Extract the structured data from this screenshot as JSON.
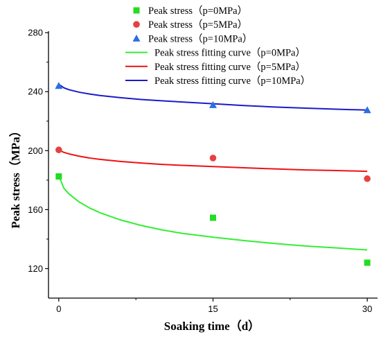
{
  "chart_data": {
    "type": "scatter",
    "xlabel": "Soaking time（d）",
    "ylabel": "Peak stress（MPa）",
    "xlim": [
      -1,
      31
    ],
    "ylim": [
      100,
      281
    ],
    "x_ticks": [
      0,
      15,
      30
    ],
    "y_ticks": [
      120,
      160,
      200,
      240,
      280
    ],
    "grid": false,
    "legend_placement": "top-right",
    "series": [
      {
        "name": "Peak stress（p=0MPa）",
        "kind": "points",
        "marker": "square",
        "color": "#22dd22",
        "x": [
          0,
          15,
          30
        ],
        "y": [
          182.5,
          154.5,
          124.0
        ]
      },
      {
        "name": "Peak stress（p=5MPa）",
        "kind": "points",
        "marker": "circle",
        "color": "#e84040",
        "x": [
          0,
          15,
          30
        ],
        "y": [
          200.5,
          195.0,
          181.0
        ]
      },
      {
        "name": "Peak stress（p=10MPa）",
        "kind": "points",
        "marker": "triangle",
        "color": "#2a6fe0",
        "x": [
          0,
          15,
          30
        ],
        "y": [
          244.0,
          231.0,
          227.5
        ]
      },
      {
        "name": "Peak stress fitting curve（p=0MPa）",
        "kind": "line",
        "color": "#33ee33",
        "x": [
          0,
          0.5,
          1,
          2,
          3,
          4,
          6,
          8,
          10,
          12,
          15,
          18,
          21,
          24,
          27,
          30
        ],
        "y": [
          183.0,
          174.5,
          170.6,
          165.1,
          161.1,
          157.9,
          153.0,
          149.3,
          146.3,
          143.9,
          141.3,
          139.0,
          137.0,
          135.3,
          134.0,
          132.7
        ]
      },
      {
        "name": "Peak stress fitting curve（p=5MPa）",
        "kind": "line",
        "color": "#ee1111",
        "x": [
          0,
          0.5,
          1,
          2,
          3,
          4,
          6,
          8,
          10,
          12,
          15,
          18,
          21,
          24,
          27,
          30
        ],
        "y": [
          200.5,
          198.8,
          197.8,
          196.2,
          195.0,
          194.1,
          192.7,
          191.6,
          190.7,
          190.0,
          189.2,
          188.4,
          187.6,
          186.9,
          186.5,
          186.0
        ]
      },
      {
        "name": "Peak stress fitting curve（p=10MPa）",
        "kind": "line",
        "color": "#1a1acc",
        "x": [
          0,
          0.5,
          1,
          2,
          3,
          4,
          6,
          8,
          10,
          12,
          15,
          18,
          21,
          24,
          27,
          30
        ],
        "y": [
          245.0,
          242.6,
          241.3,
          239.6,
          238.4,
          237.4,
          235.9,
          234.7,
          233.8,
          233.0,
          231.8,
          230.6,
          229.6,
          228.8,
          228.1,
          227.5
        ]
      }
    ]
  }
}
